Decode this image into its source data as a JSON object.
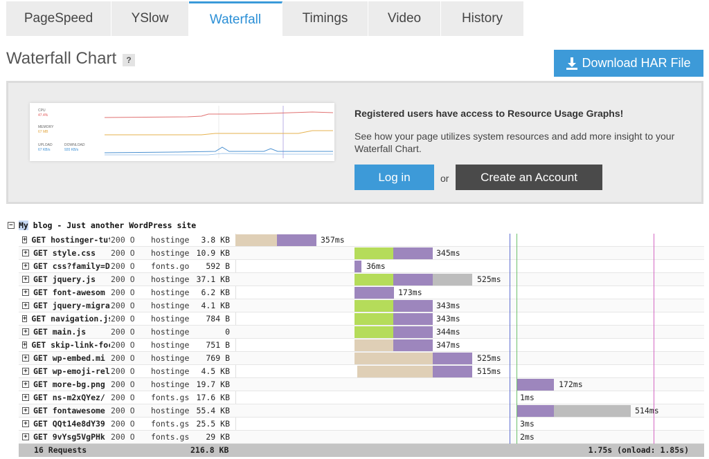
{
  "tabs": [
    {
      "label": "PageSpeed",
      "active": false
    },
    {
      "label": "YSlow",
      "active": false
    },
    {
      "label": "Waterfall",
      "active": true
    },
    {
      "label": "Timings",
      "active": false
    },
    {
      "label": "Video",
      "active": false
    },
    {
      "label": "History",
      "active": false
    }
  ],
  "header": {
    "title": "Waterfall Chart",
    "help": "?",
    "download_label": "Download HAR File",
    "download_icon": "download-icon"
  },
  "promo": {
    "preview": {
      "cpu_label": "CPU",
      "cpu_value": "47.4%",
      "memory_label": "MEMORY",
      "memory_value": "67 MB",
      "upload_label": "UPLOAD",
      "upload_value": "67 KB/s",
      "download_label": "DOWNLOAD",
      "download_value": "920 KB/s"
    },
    "heading": "Registered users have access to Resource Usage Graphs!",
    "text": "See how your page utilizes system resources and add more insight to your Waterfall Chart.",
    "login_label": "Log in",
    "or_label": "or",
    "create_label": "Create an Account"
  },
  "waterfall": {
    "page_highlight": "My",
    "page_title": " blog - Just another WordPress site",
    "rows": [
      {
        "url": "GET hostinger-tut",
        "status": "200 O",
        "domain": "hostinger",
        "size": "3.8 KB",
        "time": "357ms"
      },
      {
        "url": "GET style.css",
        "status": "200 O",
        "domain": "hostinger",
        "size": "10.9 KB",
        "time": "345ms"
      },
      {
        "url": "GET css?family=D",
        "status": "200 O",
        "domain": "fonts.goo",
        "size": "592 B",
        "time": "36ms"
      },
      {
        "url": "GET jquery.js",
        "status": "200 O",
        "domain": "hostinger",
        "size": "37.1 KB",
        "time": "525ms"
      },
      {
        "url": "GET font-awesom",
        "status": "200 O",
        "domain": "hostinger",
        "size": "6.2 KB",
        "time": "173ms"
      },
      {
        "url": "GET jquery-migra",
        "status": "200 O",
        "domain": "hostinger",
        "size": "4.1 KB",
        "time": "343ms"
      },
      {
        "url": "GET navigation.js",
        "status": "200 O",
        "domain": "hostinger",
        "size": "784 B",
        "time": "343ms"
      },
      {
        "url": "GET main.js",
        "status": "200 O",
        "domain": "hostinger",
        "size": "0",
        "time": "344ms"
      },
      {
        "url": "GET skip-link-foc",
        "status": "200 O",
        "domain": "hostinger",
        "size": "751 B",
        "time": "347ms"
      },
      {
        "url": "GET wp-embed.mi",
        "status": "200 O",
        "domain": "hostinger",
        "size": "769 B",
        "time": "525ms"
      },
      {
        "url": "GET wp-emoji-rel",
        "status": "200 O",
        "domain": "hostinger",
        "size": "4.5 KB",
        "time": "515ms"
      },
      {
        "url": "GET more-bg.png",
        "status": "200 O",
        "domain": "hostinger",
        "size": "19.7 KB",
        "time": "172ms"
      },
      {
        "url": "GET ns-m2xQYez/",
        "status": "200 O",
        "domain": "fonts.gsta",
        "size": "17.6 KB",
        "time": "1ms"
      },
      {
        "url": "GET fontawesome",
        "status": "200 O",
        "domain": "hostinger",
        "size": "55.4 KB",
        "time": "514ms"
      },
      {
        "url": "GET QQt14e8dY39",
        "status": "200 O",
        "domain": "fonts.gsta",
        "size": "25.5 KB",
        "time": "3ms"
      },
      {
        "url": "GET 9vYsg5VgPHk",
        "status": "200 O",
        "domain": "fonts.gsta",
        "size": "29 KB",
        "time": "2ms"
      }
    ],
    "footer": {
      "requests": "16 Requests",
      "total_size": "216.8 KB",
      "total_time": "1.75s (onload: 1.85s)"
    }
  },
  "colors": {
    "accent": "#3d9ad8",
    "blocking": "#dfcfb6",
    "connect": "#b5dc5a",
    "wait": "#9d86bd",
    "receive": "#bdbdbd",
    "dom_loaded": "#5b6bd0",
    "first_paint": "#6cc06c",
    "onload": "#d466c3"
  }
}
